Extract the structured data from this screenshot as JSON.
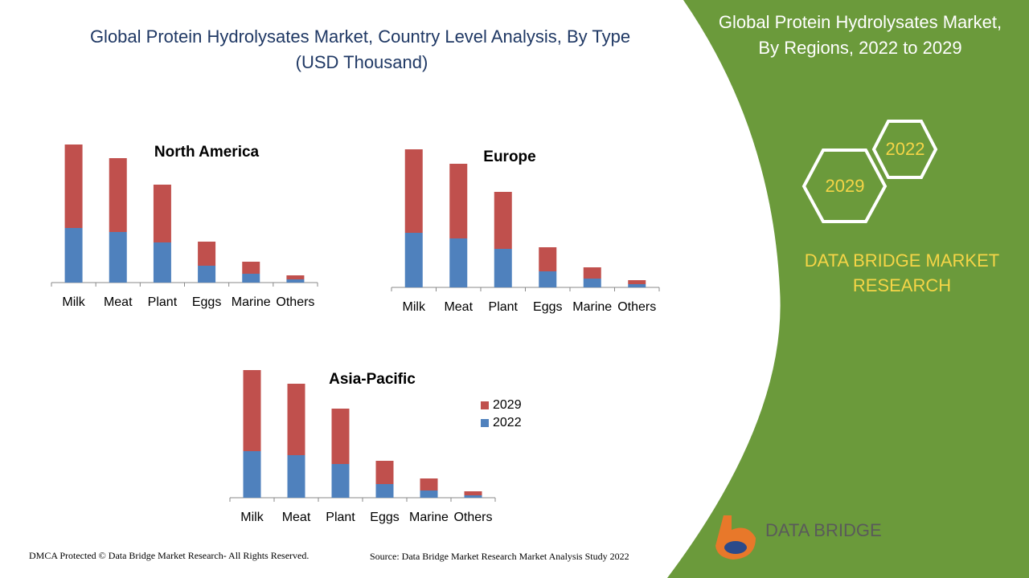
{
  "page": {
    "title_lines": [
      "Global Protein Hydrolysates Market, Country Level Analysis, By Type",
      "(USD Thousand)"
    ],
    "panel_title_lines": [
      "Global Protein Hydrolysates Market,",
      "By Regions, 2022 to 2029"
    ],
    "hex_years": [
      "2029",
      "2022"
    ],
    "brand_lines": [
      "DATA BRIDGE MARKET",
      "RESEARCH"
    ],
    "logo_text": "DATA BRIDGE",
    "footer_left": "DMCA Protected © Data Bridge Market Research- All Rights Reserved.",
    "footer_right": "Source: Data Bridge Market Research Market Analysis Study 2022"
  },
  "chart_data": [
    {
      "type": "bar",
      "stacked": true,
      "title": "North America",
      "legend": false,
      "categories": [
        "Milk",
        "Meat",
        "Plant",
        "Eggs",
        "Marine",
        "Others"
      ],
      "series": [
        {
          "name": "2022",
          "color": "#4f81bd",
          "values": [
            68,
            63,
            50,
            21,
            11,
            4
          ]
        },
        {
          "name": "2029",
          "color": "#c0504d",
          "values": [
            104,
            92,
            72,
            30,
            15,
            5
          ]
        }
      ]
    },
    {
      "type": "bar",
      "stacked": true,
      "title": "Europe",
      "legend": false,
      "categories": [
        "Milk",
        "Meat",
        "Plant",
        "Eggs",
        "Marine",
        "Others"
      ],
      "series": [
        {
          "name": "2022",
          "color": "#4f81bd",
          "values": [
            68,
            61,
            48,
            20,
            11,
            4
          ]
        },
        {
          "name": "2029",
          "color": "#c0504d",
          "values": [
            104,
            93,
            71,
            30,
            14,
            5
          ]
        }
      ]
    },
    {
      "type": "bar",
      "stacked": true,
      "title": "Asia-Pacific",
      "legend": true,
      "categories": [
        "Milk",
        "Meat",
        "Plant",
        "Eggs",
        "Marine",
        "Others"
      ],
      "series": [
        {
          "name": "2022",
          "color": "#4f81bd",
          "values": [
            58,
            53,
            42,
            17,
            9,
            3
          ]
        },
        {
          "name": "2029",
          "color": "#c0504d",
          "values": [
            101,
            89,
            69,
            29,
            15,
            5
          ]
        }
      ]
    }
  ]
}
